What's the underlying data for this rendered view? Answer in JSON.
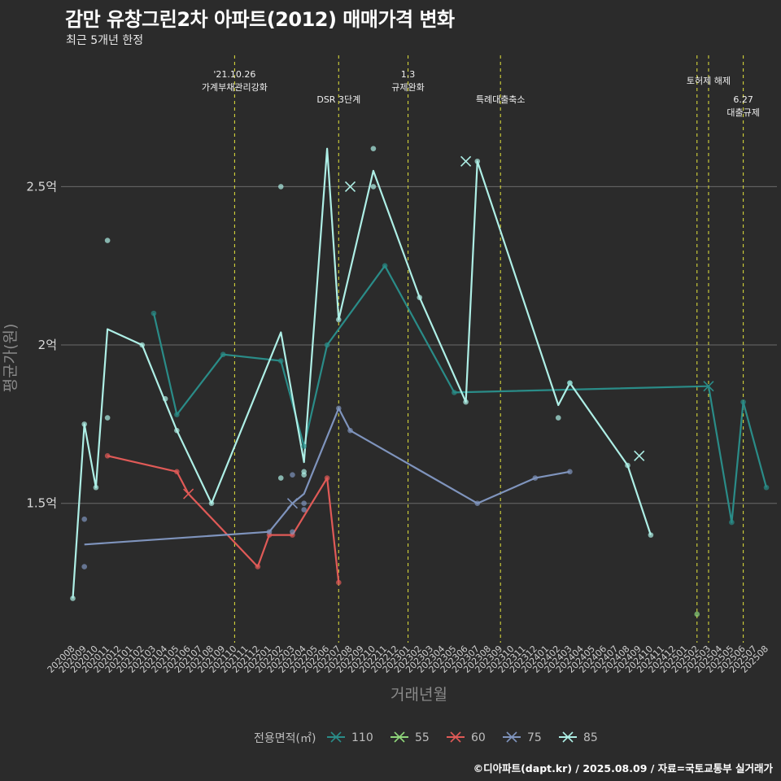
{
  "title": "감만 유창그린2차 아파트(2012) 매매가격 변화",
  "subtitle": "최근 5개년 한정",
  "caption": "©디아파트(dapt.kr) / 2025.08.09 / 자료=국토교통부 실거래가",
  "colors": {
    "background": "#2b2b2b",
    "grid": "#6b6b6b",
    "event_line": "#d4d43a",
    "s110": "#2a8c88",
    "s55": "#8fd67a",
    "s60": "#e05a57",
    "s75": "#7f94bd",
    "s85": "#aeefe6"
  },
  "chart_data": {
    "type": "line",
    "xlabel": "거래년월",
    "ylabel": "평균가(원)",
    "ylim": [
      1.06,
      2.93
    ],
    "y_ticks": [
      {
        "value": 1.5,
        "label": "1.5억"
      },
      {
        "value": 2.0,
        "label": "2억"
      },
      {
        "value": 2.5,
        "label": "2.5억"
      }
    ],
    "grid": true,
    "legend_position": "bottom",
    "legend_title": "전용면적(㎡)",
    "x_categories": [
      "202008",
      "202009",
      "202010",
      "202011",
      "202012",
      "202101",
      "202102",
      "202103",
      "202104",
      "202105",
      "202106",
      "202107",
      "202108",
      "202109",
      "202110",
      "202111",
      "202112",
      "202201",
      "202202",
      "202203",
      "202204",
      "202205",
      "202206",
      "202207",
      "202208",
      "202209",
      "202210",
      "202211",
      "202212",
      "202301",
      "202302",
      "202303",
      "202304",
      "202305",
      "202306",
      "202307",
      "202308",
      "202309",
      "202310",
      "202311",
      "202312",
      "202401",
      "202402",
      "202403",
      "202404",
      "202405",
      "202406",
      "202407",
      "202408",
      "202409",
      "202410",
      "202411",
      "202412",
      "202501",
      "202502",
      "202503",
      "202504",
      "202505",
      "202506",
      "202507",
      "202508"
    ],
    "events": [
      {
        "x": "202110",
        "lines": [
          "'21.10.26",
          "가계부채관리강화"
        ],
        "row": 0
      },
      {
        "x": "202207",
        "lines": [
          "DSR 3단계"
        ],
        "row": 2
      },
      {
        "x": "202301",
        "lines": [
          "1.3",
          "규제완화"
        ],
        "row": 0
      },
      {
        "x": "202309",
        "lines": [
          "특례대출축소"
        ],
        "row": 2
      },
      {
        "x": "202502",
        "lines": [],
        "row": 0
      },
      {
        "x": "202503",
        "lines": [
          "토허제 해제"
        ],
        "row": 1
      },
      {
        "x": "202506",
        "lines": [
          "6.27",
          "대출규제"
        ],
        "row": 2
      }
    ],
    "series": [
      {
        "name": "110",
        "color_key": "s110",
        "line": [
          [
            "202103",
            2.1
          ],
          [
            "202105",
            1.78
          ],
          [
            "202109",
            1.97
          ],
          [
            "202202",
            1.95
          ],
          [
            "202204",
            1.68
          ],
          [
            "202206",
            2.0
          ],
          [
            "202211",
            2.25
          ],
          [
            "202305",
            1.85
          ],
          [
            "202503",
            1.87
          ],
          [
            "202505",
            1.44
          ],
          [
            "202506",
            1.82
          ],
          [
            "202508",
            1.55
          ]
        ],
        "points": [
          [
            "202103",
            2.1
          ],
          [
            "202105",
            1.78
          ],
          [
            "202109",
            1.97
          ],
          [
            "202202",
            1.95
          ],
          [
            "202204",
            1.68
          ],
          [
            "202206",
            2.0
          ],
          [
            "202211",
            2.25
          ],
          [
            "202305",
            1.85
          ],
          [
            "202403",
            1.88
          ],
          [
            "202505",
            1.44
          ],
          [
            "202506",
            1.82
          ],
          [
            "202508",
            1.55
          ]
        ],
        "crosses": [
          [
            "202503",
            1.87
          ]
        ]
      },
      {
        "name": "55",
        "color_key": "s55",
        "line": [],
        "points": [
          [
            "202502",
            1.15
          ]
        ],
        "crosses": []
      },
      {
        "name": "60",
        "color_key": "s60",
        "line": [
          [
            "202011",
            1.65
          ],
          [
            "202105",
            1.6
          ],
          [
            "202106",
            1.53
          ],
          [
            "202112",
            1.3
          ],
          [
            "202201",
            1.4
          ],
          [
            "202203",
            1.4
          ],
          [
            "202206",
            1.58
          ],
          [
            "202207",
            1.25
          ]
        ],
        "points": [
          [
            "202011",
            1.65
          ],
          [
            "202105",
            1.6
          ],
          [
            "202112",
            1.3
          ],
          [
            "202201",
            1.4
          ],
          [
            "202203",
            1.4
          ],
          [
            "202206",
            1.58
          ],
          [
            "202207",
            1.25
          ]
        ],
        "crosses": [
          [
            "202106",
            1.53
          ]
        ]
      },
      {
        "name": "75",
        "color_key": "s75",
        "line": [
          [
            "202009",
            1.37
          ],
          [
            "202201",
            1.41
          ],
          [
            "202203",
            1.5
          ],
          [
            "202204",
            1.53
          ],
          [
            "202207",
            1.8
          ],
          [
            "202208",
            1.73
          ],
          [
            "202307",
            1.5
          ],
          [
            "202312",
            1.58
          ],
          [
            "202403",
            1.6
          ]
        ],
        "points": [
          [
            "202009",
            1.45
          ],
          [
            "202009",
            1.3
          ],
          [
            "202201",
            1.41
          ],
          [
            "202203",
            1.59
          ],
          [
            "202203",
            1.41
          ],
          [
            "202204",
            1.5
          ],
          [
            "202204",
            1.48
          ],
          [
            "202207",
            1.8
          ],
          [
            "202208",
            1.73
          ],
          [
            "202307",
            1.5
          ],
          [
            "202312",
            1.58
          ],
          [
            "202403",
            1.6
          ]
        ],
        "crosses": [
          [
            "202203",
            1.5
          ]
        ]
      },
      {
        "name": "85",
        "color_key": "s85",
        "line": [
          [
            "202008",
            1.2
          ],
          [
            "202009",
            1.75
          ],
          [
            "202010",
            1.55
          ],
          [
            "202011",
            2.05
          ],
          [
            "202102",
            2.0
          ],
          [
            "202105",
            1.73
          ],
          [
            "202108",
            1.5
          ],
          [
            "202202",
            2.04
          ],
          [
            "202204",
            1.63
          ],
          [
            "202206",
            2.62
          ],
          [
            "202207",
            2.08
          ],
          [
            "202210",
            2.55
          ],
          [
            "202302",
            2.15
          ],
          [
            "202306",
            1.82
          ],
          [
            "202307",
            2.58
          ],
          [
            "202402",
            1.81
          ],
          [
            "202403",
            1.88
          ],
          [
            "202408",
            1.62
          ],
          [
            "202410",
            1.4
          ]
        ],
        "points": [
          [
            "202008",
            1.2
          ],
          [
            "202009",
            1.75
          ],
          [
            "202010",
            1.55
          ],
          [
            "202011",
            2.33
          ],
          [
            "202011",
            1.77
          ],
          [
            "202102",
            2.0
          ],
          [
            "202104",
            1.83
          ],
          [
            "202105",
            1.73
          ],
          [
            "202108",
            1.5
          ],
          [
            "202202",
            2.5
          ],
          [
            "202202",
            1.58
          ],
          [
            "202204",
            1.6
          ],
          [
            "202204",
            1.59
          ],
          [
            "202207",
            2.08
          ],
          [
            "202210",
            2.62
          ],
          [
            "202210",
            2.5
          ],
          [
            "202302",
            2.15
          ],
          [
            "202306",
            1.82
          ],
          [
            "202307",
            2.58
          ],
          [
            "202402",
            1.77
          ],
          [
            "202403",
            1.88
          ],
          [
            "202408",
            1.62
          ],
          [
            "202410",
            1.4
          ]
        ],
        "crosses": [
          [
            "202208",
            2.5
          ],
          [
            "202306",
            2.58
          ],
          [
            "202409",
            1.65
          ]
        ]
      }
    ]
  }
}
